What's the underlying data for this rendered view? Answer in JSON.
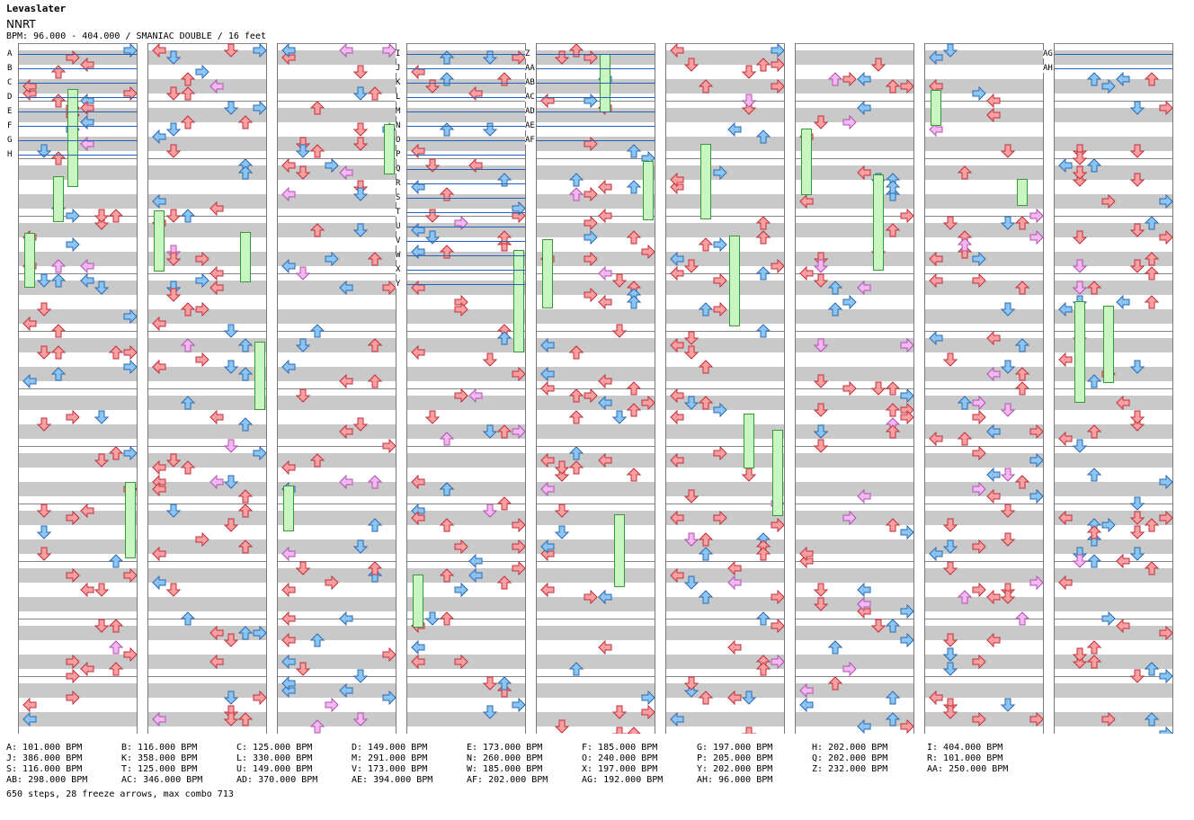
{
  "header": {
    "title": "Levaslater",
    "artist": "NNRT",
    "info": "BPM: 96.000 - 404.000 / SMANIAC DOUBLE / 16 feet"
  },
  "colors": {
    "stripe": "#c9c9c9",
    "red_arrow": "#f8a0a0",
    "blue_arrow": "#8cc4f4",
    "pink_arrow": "#f4b8f0",
    "hold": "#c8f5c0",
    "bpm_line": "#2a63b5"
  },
  "chart_columns": [
    {
      "id": 1,
      "markers": [
        "A",
        "B",
        "C",
        "D",
        "E",
        "F",
        "G",
        "H"
      ]
    },
    {
      "id": 2,
      "markers": []
    },
    {
      "id": 3,
      "markers": []
    },
    {
      "id": 4,
      "markers": [
        "I",
        "J",
        "K",
        "L",
        "M",
        "N",
        "O",
        "P",
        "Q",
        "R",
        "S",
        "T",
        "U",
        "V",
        "W",
        "X",
        "Y"
      ]
    },
    {
      "id": 5,
      "markers": [
        "Z",
        "AA",
        "AB",
        "AC",
        "AD",
        "AE",
        "AF"
      ]
    },
    {
      "id": 6,
      "markers": []
    },
    {
      "id": 7,
      "markers": []
    },
    {
      "id": 8,
      "markers": []
    },
    {
      "id": 9,
      "markers": [
        "AG",
        "AH"
      ]
    }
  ],
  "bpm_legend": [
    {
      "key": "A",
      "bpm": "101.000 BPM"
    },
    {
      "key": "B",
      "bpm": "116.000 BPM"
    },
    {
      "key": "C",
      "bpm": "125.000 BPM"
    },
    {
      "key": "D",
      "bpm": "149.000 BPM"
    },
    {
      "key": "E",
      "bpm": "173.000 BPM"
    },
    {
      "key": "F",
      "bpm": "185.000 BPM"
    },
    {
      "key": "G",
      "bpm": "197.000 BPM"
    },
    {
      "key": "H",
      "bpm": "202.000 BPM"
    },
    {
      "key": "I",
      "bpm": "404.000 BPM"
    },
    {
      "key": "J",
      "bpm": "386.000 BPM"
    },
    {
      "key": "K",
      "bpm": "358.000 BPM"
    },
    {
      "key": "L",
      "bpm": "330.000 BPM"
    },
    {
      "key": "M",
      "bpm": "291.000 BPM"
    },
    {
      "key": "N",
      "bpm": "260.000 BPM"
    },
    {
      "key": "O",
      "bpm": "240.000 BPM"
    },
    {
      "key": "P",
      "bpm": "205.000 BPM"
    },
    {
      "key": "Q",
      "bpm": "202.000 BPM"
    },
    {
      "key": "R",
      "bpm": "101.000 BPM"
    },
    {
      "key": "S",
      "bpm": "116.000 BPM"
    },
    {
      "key": "T",
      "bpm": "125.000 BPM"
    },
    {
      "key": "U",
      "bpm": "149.000 BPM"
    },
    {
      "key": "V",
      "bpm": "173.000 BPM"
    },
    {
      "key": "W",
      "bpm": "185.000 BPM"
    },
    {
      "key": "X",
      "bpm": "197.000 BPM"
    },
    {
      "key": "Y",
      "bpm": "202.000 BPM"
    },
    {
      "key": "Z",
      "bpm": "232.000 BPM"
    },
    {
      "key": "AA",
      "bpm": "250.000 BPM"
    },
    {
      "key": "AB",
      "bpm": "298.000 BPM"
    },
    {
      "key": "AC",
      "bpm": "346.000 BPM"
    },
    {
      "key": "AD",
      "bpm": "370.000 BPM"
    },
    {
      "key": "AE",
      "bpm": "394.000 BPM"
    },
    {
      "key": "AF",
      "bpm": "202.000 BPM"
    },
    {
      "key": "AG",
      "bpm": "192.000 BPM"
    },
    {
      "key": "AH",
      "bpm": "96.000 BPM"
    }
  ],
  "footer": {
    "stats": "650 steps, 28 freeze arrows, max combo 713"
  }
}
